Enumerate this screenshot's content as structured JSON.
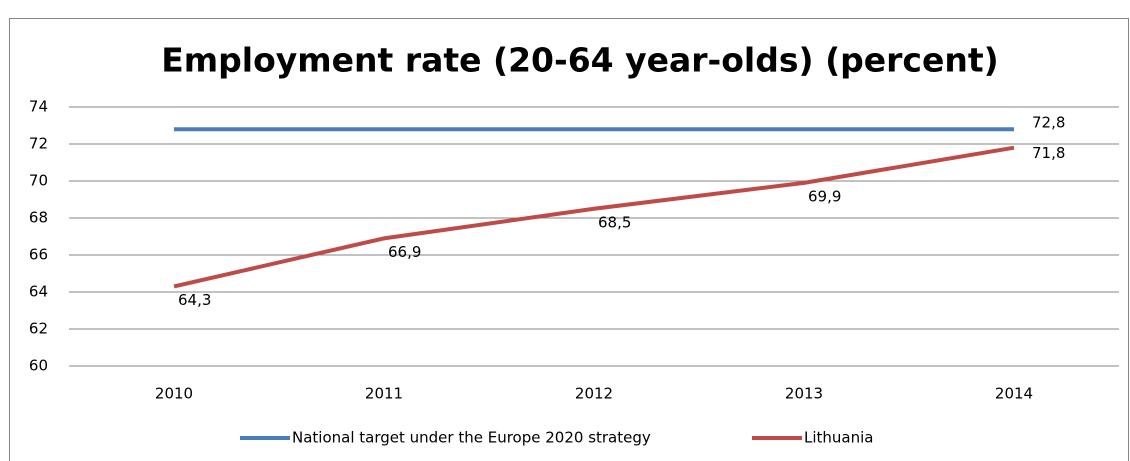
{
  "chart_data": {
    "type": "line",
    "title": "Employment rate (20-64 year-olds) (percent)",
    "categories": [
      "2010",
      "2011",
      "2012",
      "2013",
      "2014"
    ],
    "series": [
      {
        "name": "National target under the Europe 2020 strategy",
        "color": "#4a7ebb",
        "values": [
          72.8,
          72.8,
          72.8,
          72.8,
          72.8
        ],
        "value_labels": [
          null,
          null,
          null,
          null,
          "72,8"
        ]
      },
      {
        "name": "Lithuania",
        "color": "#be4b48",
        "values": [
          64.3,
          66.9,
          68.5,
          69.9,
          71.8
        ],
        "value_labels": [
          "64,3",
          "66,9",
          "68,5",
          "69,9",
          "71,8"
        ]
      }
    ],
    "ylim": [
      60,
      74
    ],
    "yticks": [
      60,
      62,
      64,
      66,
      68,
      70,
      72,
      74
    ],
    "grid": true,
    "legend": "bottom"
  }
}
